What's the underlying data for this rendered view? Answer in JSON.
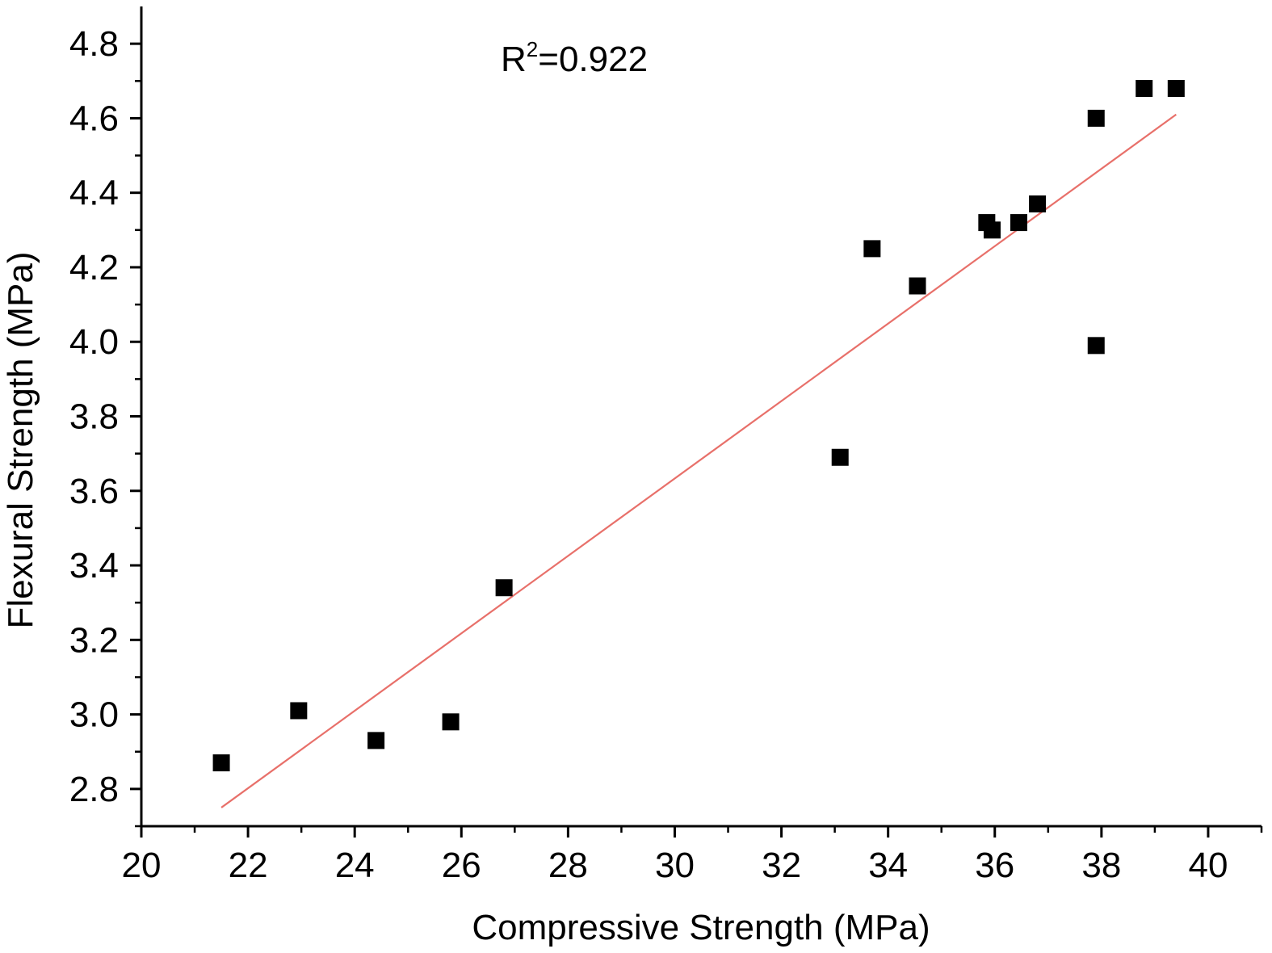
{
  "chart_data": {
    "type": "scatter",
    "title": "",
    "xlabel": "Compressive Strength (MPa)",
    "ylabel": "Flexural Strength (MPa)",
    "xlim": [
      20,
      41
    ],
    "ylim": [
      2.7,
      4.9
    ],
    "xticks": [
      20,
      22,
      24,
      26,
      28,
      30,
      32,
      34,
      36,
      38,
      40
    ],
    "xtick_labels": [
      "20",
      "22",
      "24",
      "26",
      "28",
      "30",
      "32",
      "34",
      "36",
      "38",
      "40"
    ],
    "yticks": [
      2.8,
      3.0,
      3.2,
      3.4,
      3.6,
      3.8,
      4.0,
      4.2,
      4.4,
      4.6,
      4.8
    ],
    "ytick_labels": [
      "2.8",
      "3.0",
      "3.2",
      "3.4",
      "3.6",
      "3.8",
      "4.0",
      "4.2",
      "4.4",
      "4.6",
      "4.8"
    ],
    "grid": false,
    "legend": "none",
    "annotation": {
      "base": "R",
      "sup": "2",
      "rest": "=0.922"
    },
    "series": [
      {
        "marker": "square",
        "color": "#000000",
        "points": [
          {
            "x": 21.5,
            "y": 2.87
          },
          {
            "x": 22.95,
            "y": 3.01
          },
          {
            "x": 24.4,
            "y": 2.93
          },
          {
            "x": 25.8,
            "y": 2.98
          },
          {
            "x": 26.8,
            "y": 3.34
          },
          {
            "x": 33.1,
            "y": 3.69
          },
          {
            "x": 33.7,
            "y": 4.25
          },
          {
            "x": 34.55,
            "y": 4.15
          },
          {
            "x": 35.85,
            "y": 4.32
          },
          {
            "x": 35.95,
            "y": 4.3
          },
          {
            "x": 36.45,
            "y": 4.32
          },
          {
            "x": 36.8,
            "y": 4.37
          },
          {
            "x": 37.9,
            "y": 4.6
          },
          {
            "x": 37.9,
            "y": 3.99
          },
          {
            "x": 38.8,
            "y": 4.68
          },
          {
            "x": 39.4,
            "y": 4.68
          }
        ]
      }
    ],
    "fit_line": {
      "color": "#e8706a",
      "x": [
        21.5,
        39.4
      ],
      "y": [
        2.75,
        4.61
      ]
    }
  }
}
